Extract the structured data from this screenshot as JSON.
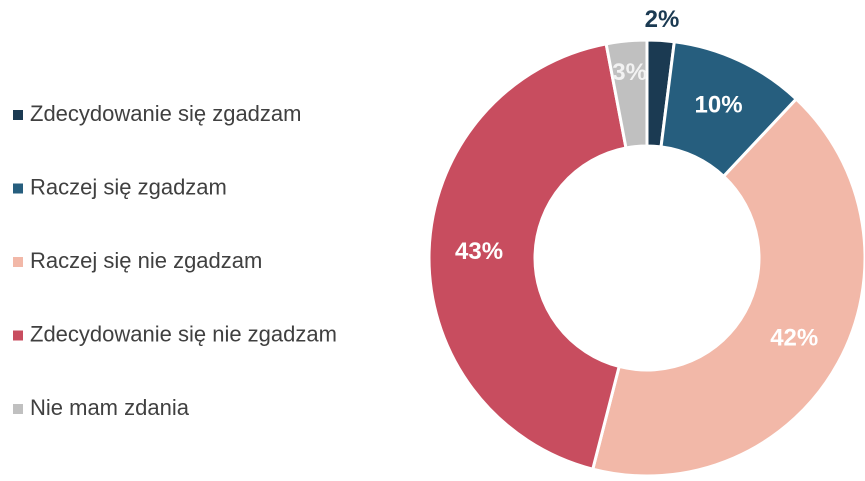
{
  "chart_data": {
    "type": "donut",
    "categories": [
      "Zdecydowanie się zgadzam",
      "Raczej się zgadzam",
      "Raczej się nie zgadzam",
      "Zdecydowanie się nie zgadzam",
      "Nie mam zdania"
    ],
    "values": [
      2,
      10,
      42,
      43,
      3
    ],
    "colors": [
      "#1b3a52",
      "#265e7e",
      "#f2b8a8",
      "#c84d5f",
      "#c0c0c0"
    ],
    "legend": "left"
  }
}
